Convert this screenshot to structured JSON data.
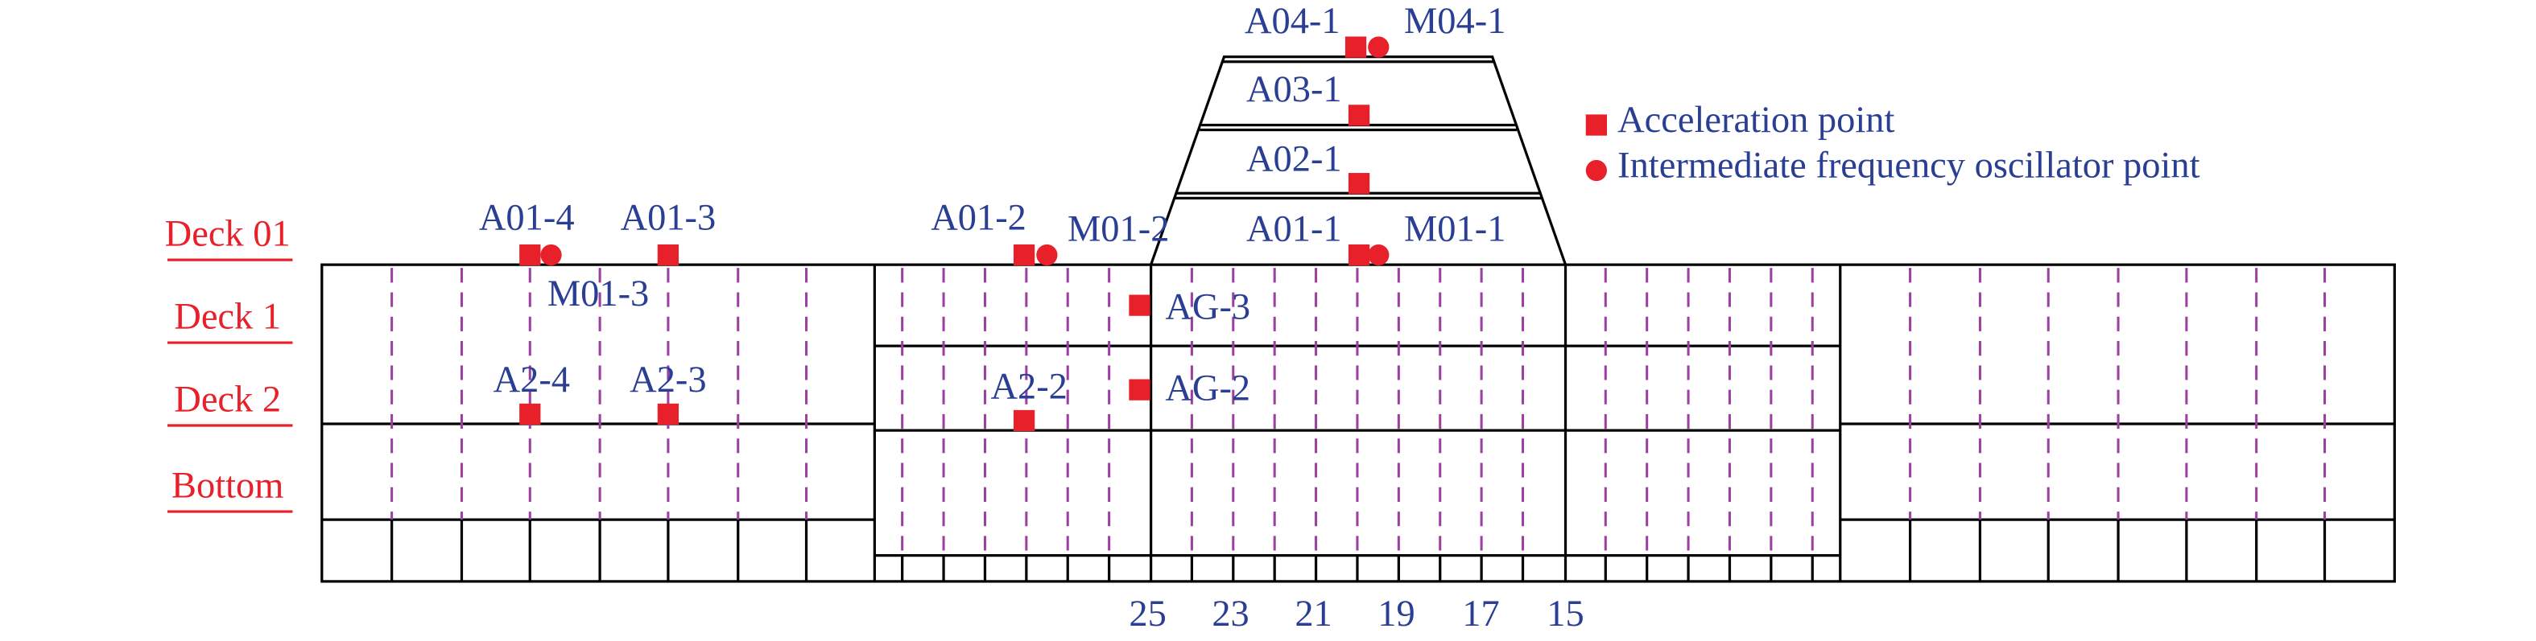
{
  "decks": [
    "Deck 01",
    "Deck 1",
    "Deck 2",
    "Bottom"
  ],
  "points": [
    {
      "label": "A04-1",
      "kind": "square"
    },
    {
      "label": "M04-1",
      "kind": "circle"
    },
    {
      "label": "A03-1",
      "kind": "square"
    },
    {
      "label": "A02-1",
      "kind": "square"
    },
    {
      "label": "A01-1",
      "kind": "square"
    },
    {
      "label": "M01-1",
      "kind": "circle"
    },
    {
      "label": "A01-2",
      "kind": "square"
    },
    {
      "label": "M01-2",
      "kind": "circle"
    },
    {
      "label": "A01-4",
      "kind": "square"
    },
    {
      "label": "M01-3",
      "kind": "circle"
    },
    {
      "label": "A01-3",
      "kind": "square"
    },
    {
      "label": "AG-3",
      "kind": "square"
    },
    {
      "label": "AG-2",
      "kind": "square"
    },
    {
      "label": "A2-4",
      "kind": "square"
    },
    {
      "label": "A2-3",
      "kind": "square"
    },
    {
      "label": "A2-2",
      "kind": "square"
    }
  ],
  "frame_numbers": [
    "25",
    "23",
    "21",
    "19",
    "17",
    "15"
  ],
  "legend": [
    {
      "label": "Acceleration point",
      "kind": "square"
    },
    {
      "label": "Intermediate frequency oscillator point",
      "kind": "circle"
    }
  ]
}
